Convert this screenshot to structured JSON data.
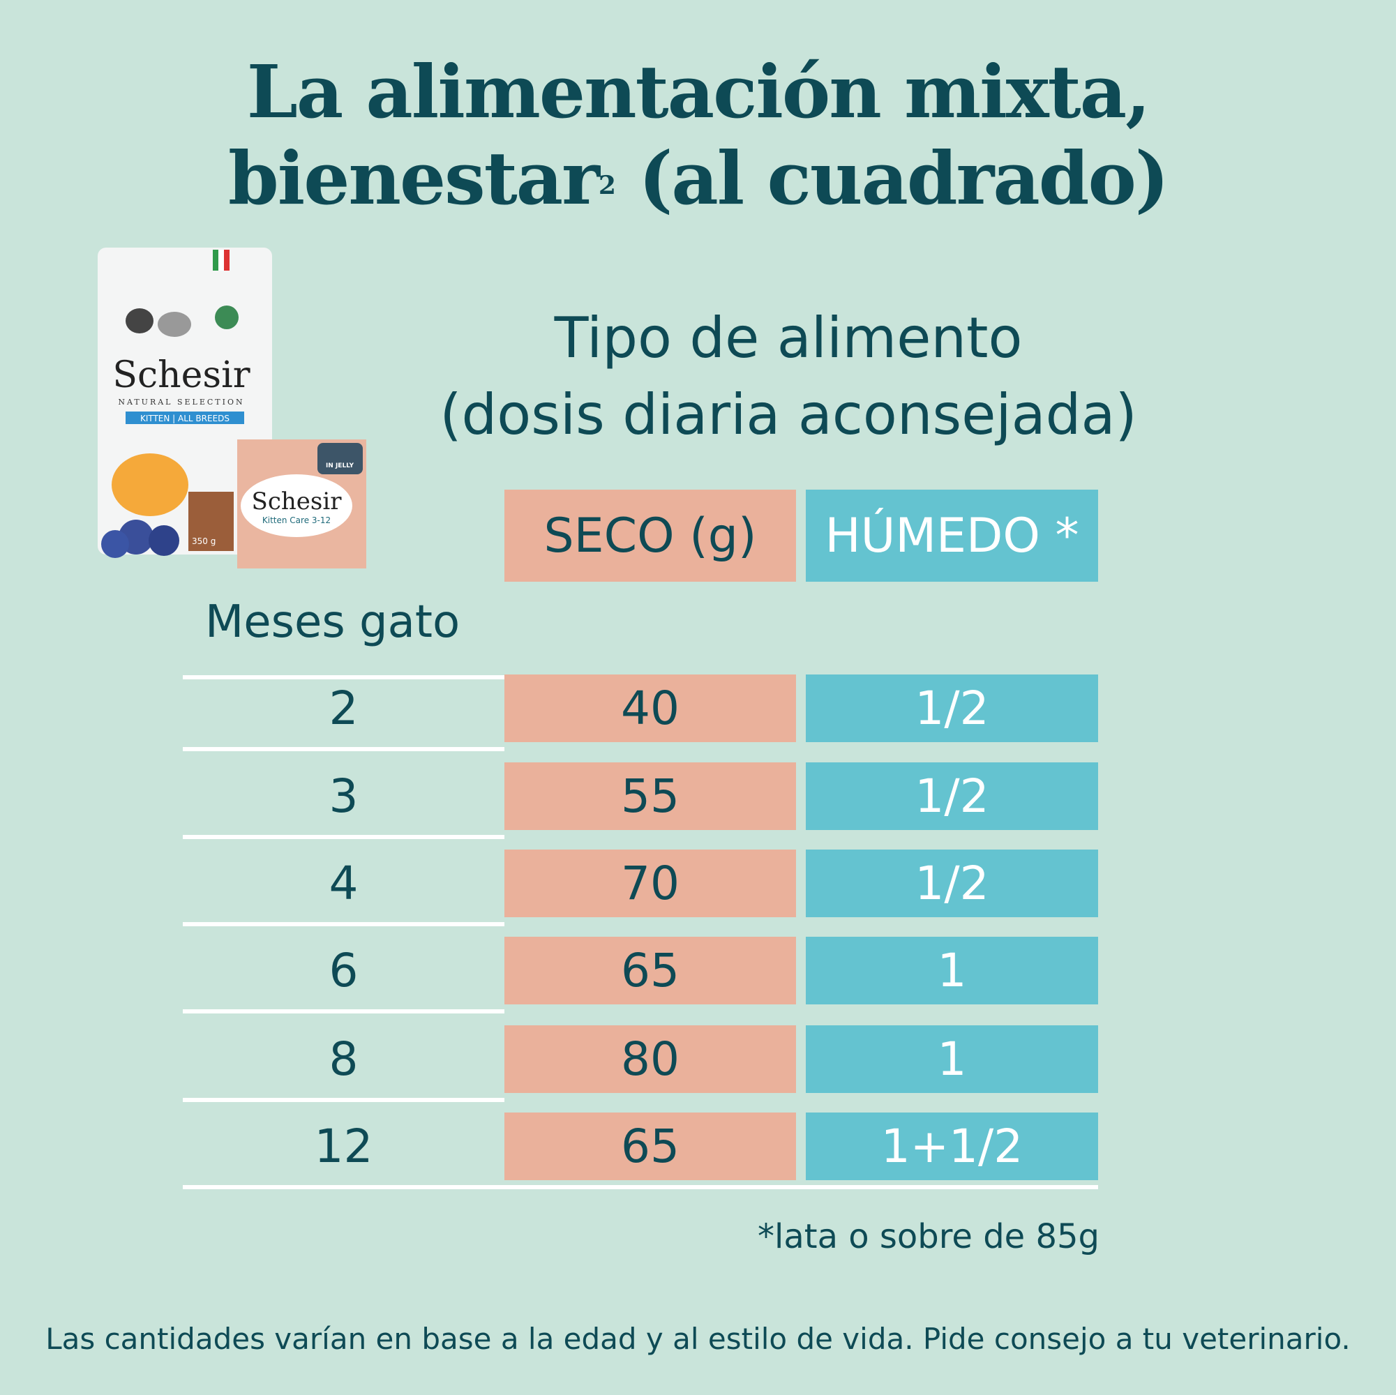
{
  "title": {
    "line1": "La alimentación mixta,",
    "line2_pre": "bienestar",
    "line2_sup": "2",
    "line2_post": " (al cuadrado)"
  },
  "subtitle": {
    "line1": "Tipo de alimento",
    "line2": "(dosis diaria aconsejada)"
  },
  "table": {
    "row_header": "Meses gato",
    "columns": [
      "SECO (g)",
      "HÚMEDO *"
    ],
    "rows": [
      {
        "months": "2",
        "seco": "40",
        "humedo": "1/2"
      },
      {
        "months": "3",
        "seco": "55",
        "humedo": "1/2"
      },
      {
        "months": "4",
        "seco": "70",
        "humedo": "1/2"
      },
      {
        "months": "6",
        "seco": "65",
        "humedo": "1"
      },
      {
        "months": "8",
        "seco": "80",
        "humedo": "1"
      },
      {
        "months": "12",
        "seco": "65",
        "humedo": "1+1/2"
      }
    ]
  },
  "footnote": "*lata o sobre de 85g",
  "disclaimer": "Las cantidades varían en base a la edad y al estilo de vida. Pide consejo a tu veterinario.",
  "products": {
    "brand": "Schesir",
    "bag_line": "NATURAL SELECTION",
    "bag_band": "KITTEN | ALL BREEDS",
    "bag_weight": "350 g",
    "can_line": "Kitten Care 3-12",
    "can_badge": "IN JELLY"
  },
  "colors": {
    "background": "#c9e4da",
    "text": "#0e4a55",
    "seco": "#eab19b",
    "humedo": "#64c3d0"
  }
}
